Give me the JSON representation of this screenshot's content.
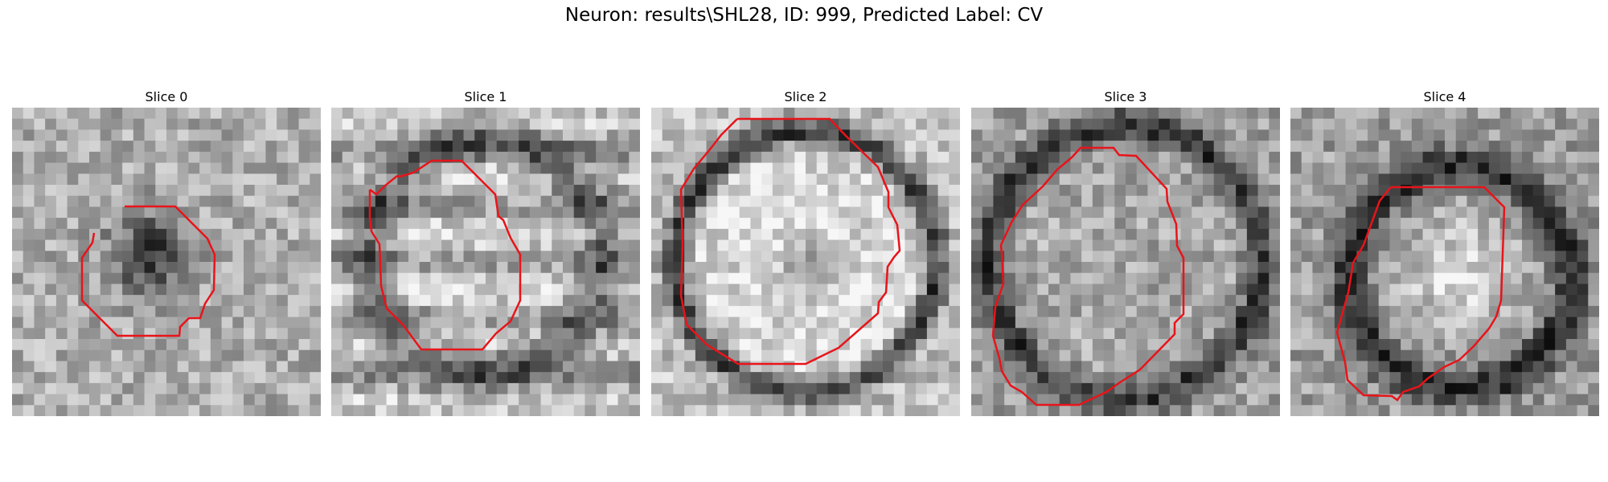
{
  "figure": {
    "title": "Neuron: results\\SHL28, ID: 999, Predicted Label: CV"
  },
  "colors": {
    "contour": "#e8141a",
    "background": "#ffffff"
  },
  "slices": [
    {
      "label": "Slice 0",
      "pattern": "dark-blob-center"
    },
    {
      "label": "Slice 1",
      "pattern": "horizontal-streaks"
    },
    {
      "label": "Slice 2",
      "pattern": "bright-disk-dark-ring"
    },
    {
      "label": "Slice 3",
      "pattern": "mottled-disk-dark-ring"
    },
    {
      "label": "Slice 4",
      "pattern": "bright-core-dark-ring"
    }
  ]
}
